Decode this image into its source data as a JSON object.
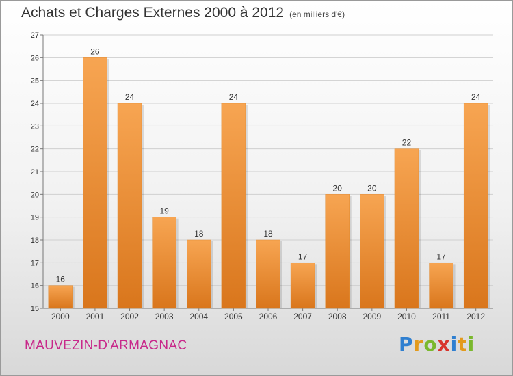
{
  "header": {
    "title": "Achats et Charges Externes 2000 à 2012",
    "unit": "(en milliers d'€)"
  },
  "footer": {
    "town": "MAUVEZIN-D'ARMAGNAC",
    "logo_letters": [
      {
        "char": "P",
        "color": "#2f7fd0"
      },
      {
        "char": "r",
        "color": "#e39a1c"
      },
      {
        "char": "o",
        "color": "#7ab82d"
      },
      {
        "char": "x",
        "color": "#d8342c"
      },
      {
        "char": "i",
        "color": "#2f7fd0"
      },
      {
        "char": "t",
        "color": "#e39a1c"
      },
      {
        "char": "i",
        "color": "#7ab82d"
      }
    ]
  },
  "colors": {
    "bar_top": "#f7a552",
    "bar_bottom": "#d9761c",
    "town": "#c8288a"
  },
  "chart_data": {
    "type": "bar",
    "categories": [
      "2000",
      "2001",
      "2002",
      "2003",
      "2004",
      "2005",
      "2006",
      "2007",
      "2008",
      "2009",
      "2010",
      "2011",
      "2012"
    ],
    "values": [
      16,
      26,
      24,
      19,
      18,
      24,
      18,
      17,
      20,
      20,
      22,
      17,
      24
    ],
    "ylim": [
      15,
      27
    ],
    "yticks": [
      15,
      16,
      17,
      18,
      19,
      20,
      21,
      22,
      23,
      24,
      25,
      26,
      27
    ],
    "grid": true
  }
}
